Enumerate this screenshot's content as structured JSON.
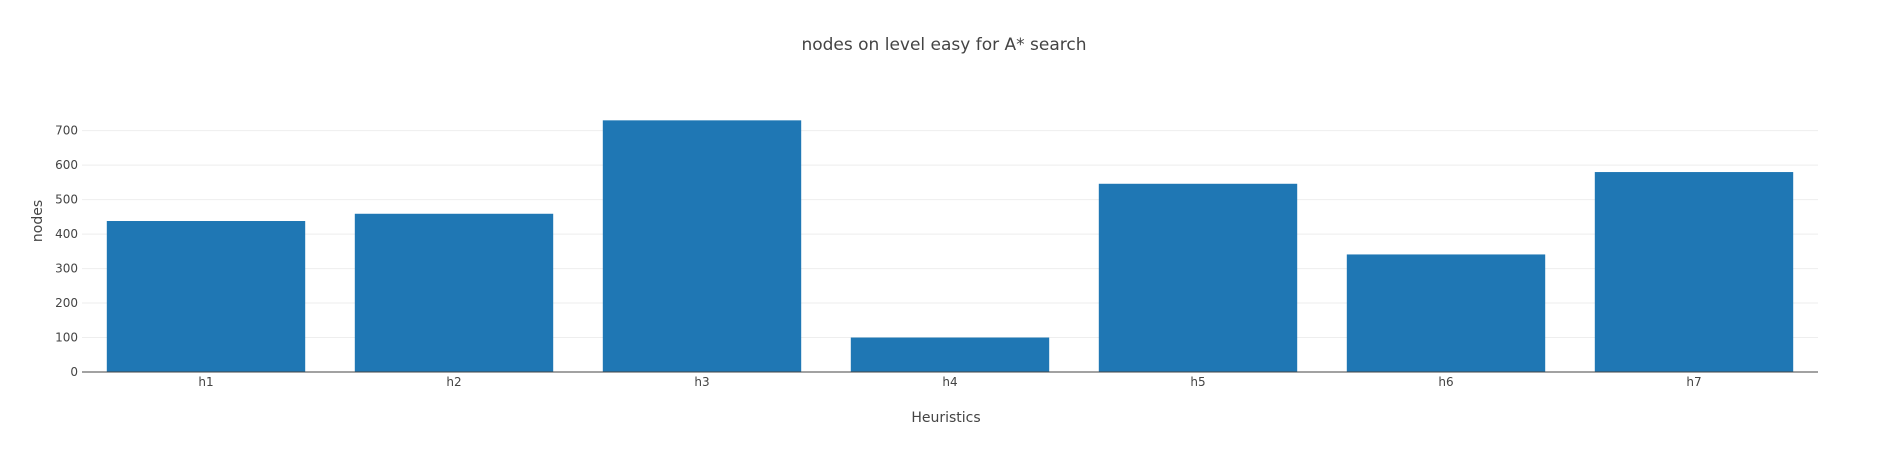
{
  "chart_data": {
    "type": "bar",
    "title": "nodes on level easy for A* search",
    "xlabel": "Heuristics",
    "ylabel": "nodes",
    "categories": [
      "h1",
      "h2",
      "h3",
      "h4",
      "h5",
      "h6",
      "h7"
    ],
    "values": [
      438,
      459,
      730,
      100,
      546,
      341,
      580
    ],
    "ylim": [
      0,
      760
    ],
    "yticks": [
      0,
      100,
      200,
      300,
      400,
      500,
      600,
      700
    ],
    "grid": true,
    "bar_color": "#1f77b4"
  }
}
